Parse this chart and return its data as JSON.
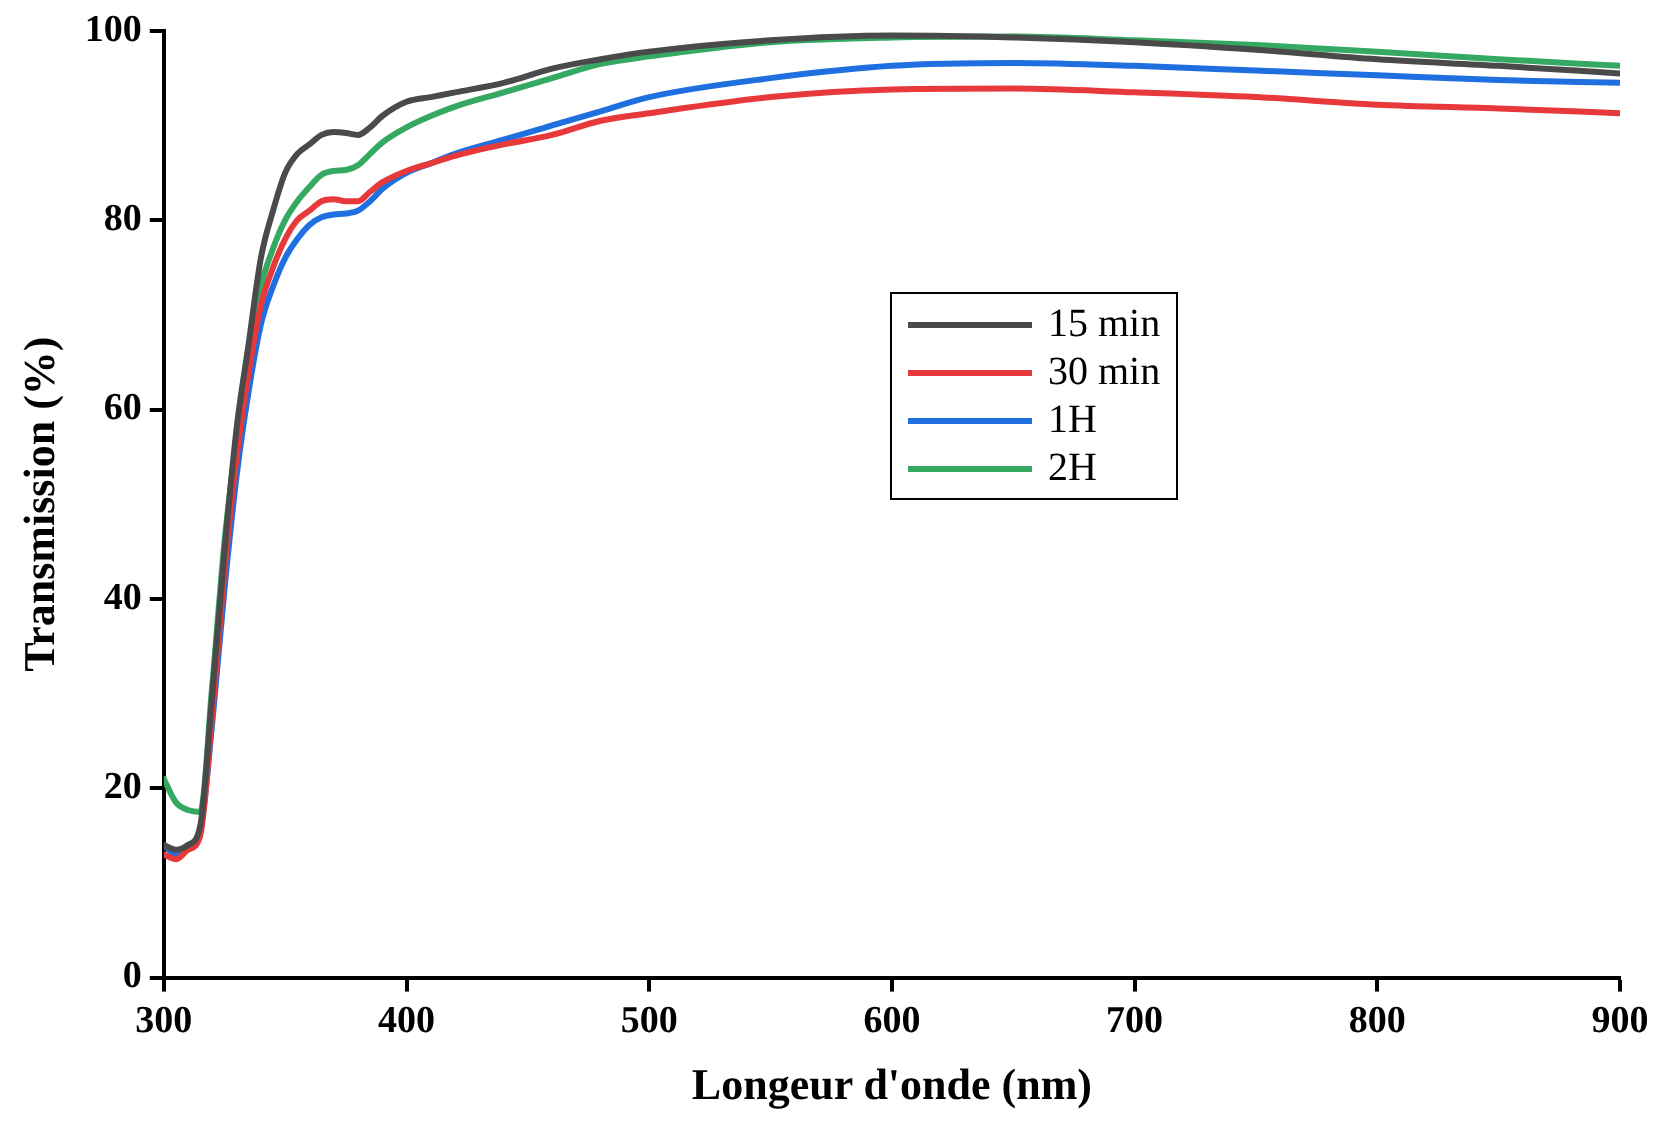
{
  "chart_data": {
    "type": "line",
    "xlabel": "Longeur d'onde (nm)",
    "ylabel": "Transmission (%)",
    "x": [
      300,
      305,
      310,
      315,
      320,
      325,
      330,
      335,
      340,
      345,
      350,
      355,
      360,
      365,
      370,
      375,
      380,
      385,
      390,
      400,
      410,
      420,
      440,
      460,
      480,
      500,
      550,
      600,
      650,
      700,
      750,
      800,
      850,
      900
    ],
    "series": [
      {
        "name": "15 min",
        "color": "#4a4a4a",
        "values": [
          14,
          13.5,
          14,
          16,
          30,
          45,
          58,
          67,
          76,
          81,
          85,
          87,
          88,
          89,
          89.3,
          89.2,
          89,
          89.8,
          91,
          92.5,
          93,
          93.5,
          94.5,
          96,
          97,
          97.8,
          99,
          99.5,
          99.3,
          98.8,
          98,
          97,
          96.3,
          95.5
        ]
      },
      {
        "name": "30 min",
        "color": "#e8393a",
        "values": [
          13,
          12.5,
          13.5,
          15,
          28,
          43,
          55,
          64,
          71,
          75,
          78,
          80,
          81,
          82,
          82.2,
          82,
          82,
          83,
          84,
          85.2,
          86,
          86.8,
          88,
          89,
          90.5,
          91.3,
          93,
          93.8,
          93.9,
          93.5,
          93,
          92.2,
          91.8,
          91.3
        ]
      },
      {
        "name": "1H",
        "color": "#1f6fe0",
        "values": [
          14,
          13,
          14,
          15.5,
          27,
          41,
          53,
          62,
          69,
          73,
          76,
          78,
          79.5,
          80.3,
          80.6,
          80.7,
          81,
          82,
          83.3,
          85,
          86,
          87,
          88.5,
          90,
          91.5,
          93,
          95,
          96.3,
          96.6,
          96.3,
          95.8,
          95.3,
          94.8,
          94.5
        ]
      },
      {
        "name": "2H",
        "color": "#35a862",
        "values": [
          21,
          18.5,
          17.7,
          17.5,
          31,
          46,
          57,
          66,
          73,
          77,
          80,
          82,
          83.5,
          84.8,
          85.2,
          85.3,
          85.8,
          87,
          88.2,
          89.8,
          91,
          92,
          93.5,
          95,
          96.5,
          97.3,
          98.8,
          99.3,
          99.4,
          99,
          98.5,
          97.8,
          97,
          96.3
        ]
      }
    ],
    "xlim": [
      300,
      900
    ],
    "xticks": [
      300,
      400,
      500,
      600,
      700,
      800,
      900
    ],
    "ylim": [
      0,
      100
    ],
    "yticks": [
      0,
      20,
      40,
      60,
      80,
      100
    ],
    "grid": false,
    "legend": "center right",
    "marker": "none",
    "line_style": "solid"
  }
}
